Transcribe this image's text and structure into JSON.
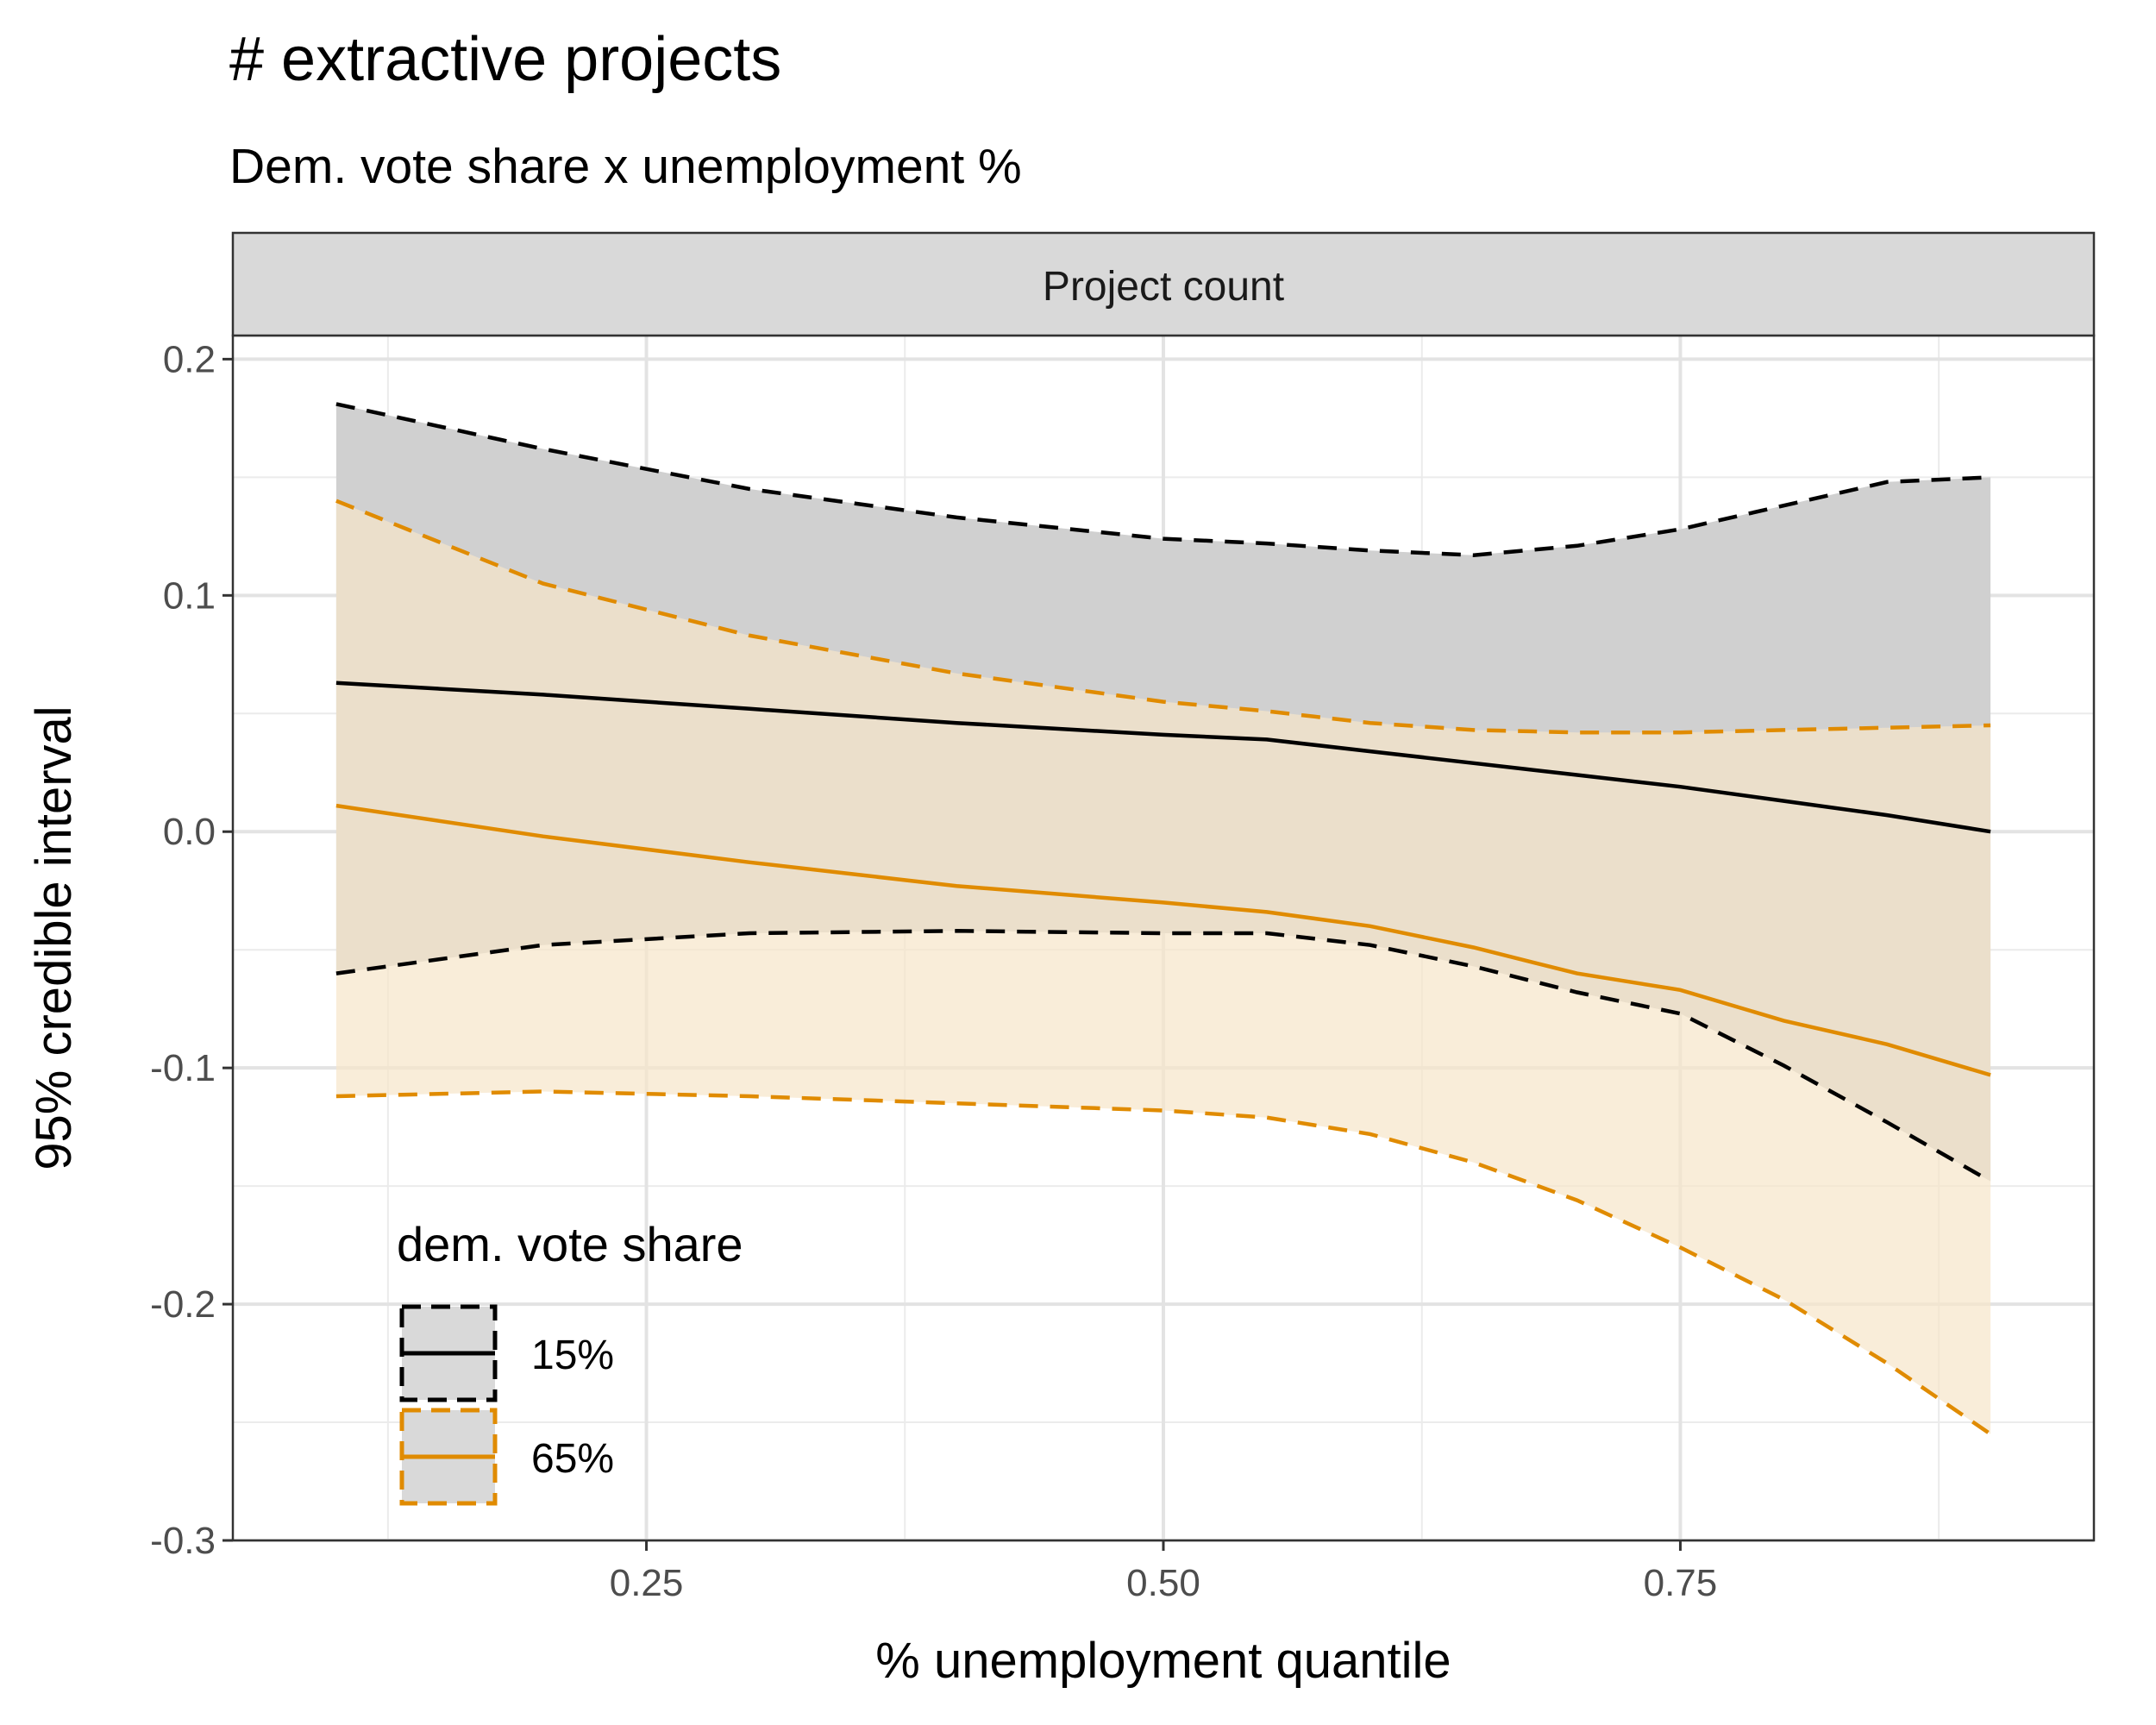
{
  "title": "# extractive projects",
  "subtitle": "Dem. vote share x unemployment %",
  "chart_data": {
    "type": "area",
    "facet_label": "Project count",
    "xlabel": "% unemployment quantile",
    "ylabel": "95% credible interval",
    "xlim": [
      0.05,
      0.95
    ],
    "ylim": [
      -0.3,
      0.21
    ],
    "x_ticks": [
      0.25,
      0.5,
      0.75
    ],
    "x_tick_labels": [
      "0.25",
      "0.50",
      "0.75"
    ],
    "y_ticks": [
      -0.3,
      -0.2,
      -0.1,
      0.0,
      0.1,
      0.2
    ],
    "y_tick_labels": [
      "-0.3",
      "-0.2",
      "-0.1",
      "0.0",
      "0.1",
      "0.2"
    ],
    "grid": true,
    "legend": {
      "title": "dem. vote share",
      "placement": "bottom-left",
      "entries": [
        "15%",
        "65%"
      ]
    },
    "x": [
      0.1,
      0.2,
      0.3,
      0.4,
      0.5,
      0.55,
      0.6,
      0.65,
      0.7,
      0.75,
      0.8,
      0.85,
      0.9
    ],
    "series": [
      {
        "name": "15%",
        "color": "#000000",
        "fill": "#d0d0d0",
        "median": [
          0.063,
          0.058,
          0.052,
          0.046,
          0.041,
          0.039,
          0.034,
          0.029,
          0.024,
          0.019,
          0.013,
          0.007,
          0.0
        ],
        "upper": [
          0.181,
          0.162,
          0.145,
          0.133,
          0.124,
          0.122,
          0.119,
          0.117,
          0.121,
          0.128,
          0.138,
          0.148,
          0.15
        ],
        "lower": [
          -0.06,
          -0.048,
          -0.043,
          -0.042,
          -0.043,
          -0.043,
          -0.048,
          -0.057,
          -0.068,
          -0.077,
          -0.099,
          -0.123,
          -0.148
        ]
      },
      {
        "name": "65%",
        "color": "#e08b00",
        "fill": "#f7e5c9",
        "median": [
          0.011,
          -0.002,
          -0.013,
          -0.023,
          -0.03,
          -0.034,
          -0.04,
          -0.049,
          -0.06,
          -0.067,
          -0.08,
          -0.09,
          -0.103
        ],
        "upper": [
          0.14,
          0.105,
          0.083,
          0.067,
          0.055,
          0.051,
          0.046,
          0.043,
          0.042,
          0.042,
          0.043,
          0.044,
          0.045
        ],
        "lower": [
          -0.112,
          -0.11,
          -0.112,
          -0.115,
          -0.118,
          -0.121,
          -0.128,
          -0.14,
          -0.156,
          -0.176,
          -0.198,
          -0.225,
          -0.255
        ]
      }
    ]
  }
}
